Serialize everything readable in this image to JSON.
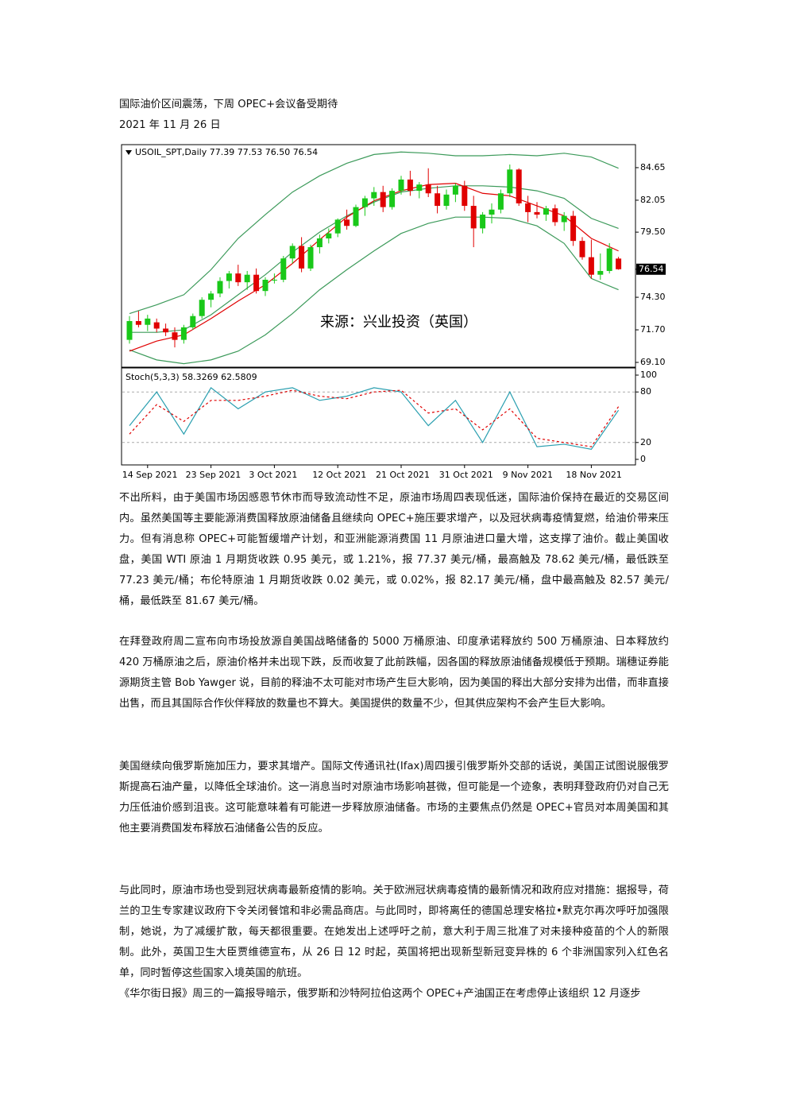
{
  "document": {
    "title": "国际油价区间震荡，下周 OPEC+会议备受期待",
    "date": "2021 年 11 月 26 日",
    "paragraphs": [
      "不出所料，由于美国市场因感恩节休市而导致流动性不足，原油市场周四表现低迷，国际油价保持在最近的交易区间内。虽然美国等主要能源消费国释放原油储备且继续向 OPEC+施压要求增产，以及冠状病毒疫情复燃，给油价带来压力。但有消息称 OPEC+可能暂缓增产计划，和亚洲能源消费国 11 月原油进口量大增，这支撑了油价。截止美国收盘，美国 WTI 原油 1 月期货收跌 0.95 美元，或 1.21%，报 77.37 美元/桶，最高触及 78.62 美元/桶，最低跌至 77.23 美元/桶；布伦特原油 1 月期货收跌 0.02 美元，或 0.02%，报 82.17 美元/桶，盘中最高触及 82.57 美元/桶，最低跌至 81.67 美元/桶。",
      "在拜登政府周二宣布向市场投放源自美国战略储备的 5000 万桶原油、印度承诺释放约 500 万桶原油、日本释放约 420 万桶原油之后，原油价格并未出现下跌，反而收复了此前跌幅，因各国的释放原油储备规模低于预期。瑞穗证券能源期货主管 Bob Yawger 说，目前的释油不太可能对市场产生巨大影响，因为美国的释出大部分安排为出借，而非直接出售，而且其国际合作伙伴释放的数量也不算大。美国提供的数量不少，但其供应架构不会产生巨大影响。",
      "美国继续向俄罗斯施加压力，要求其增产。国际文传通讯社(Ifax)周四援引俄罗斯外交部的话说，美国正试图说服俄罗斯提高石油产量，以降低全球油价。这一消息当时对原油市场影响甚微，但可能是一个迹象，表明拜登政府仍对自己无力压低油价感到沮丧。这可能意味着有可能进一步释放原油储备。市场的主要焦点仍然是 OPEC+官员对本周美国和其他主要消费国发布释放石油储备公告的反应。",
      "与此同时，原油市场也受到冠状病毒最新疫情的影响。关于欧洲冠状病毒疫情的最新情况和政府应对措施：据报导，荷兰的卫生专家建议政府下令关闭餐馆和非必需品商店。与此同时，即将离任的德国总理安格拉•默克尔再次呼吁加强限制，她说，为了减缓扩散，每天都很重要。在她发出上述呼吁之前，意大利于周三批准了对未接种疫苗的个人的新限制。此外，英国卫生大臣贾维德宣布，从 26 日 12 时起，英国将把出现新型新冠变异株的 6 个非洲国家列入红色名单，同时暂停这些国家入境英国的航班。",
      "《华尔街日报》周三的一篇报导暗示，俄罗斯和沙特阿拉伯这两个 OPEC+产油国正在考虑停止该组织 12 月逐步"
    ]
  },
  "chart_data": [
    {
      "type": "candlestick",
      "title": "USOIL_SPT,Daily 77.39 77.53 76.50 76.54",
      "annotation": "来源：兴业投资（英国）",
      "up_color": "#19c819",
      "down_color": "#e00000",
      "categories": [
        null,
        null,
        "14 Sep 2021",
        null,
        null,
        null,
        null,
        null,
        null,
        "23 Sep 2021",
        null,
        null,
        null,
        null,
        null,
        null,
        "3 Oct 2021",
        null,
        null,
        null,
        null,
        null,
        null,
        "12 Oct 2021",
        null,
        null,
        null,
        null,
        null,
        null,
        "21 Oct 2021",
        null,
        null,
        null,
        null,
        null,
        null,
        "31 Oct 2021",
        null,
        null,
        null,
        null,
        null,
        null,
        "9 Nov 2021",
        null,
        null,
        null,
        null,
        null,
        null,
        "18 Nov 2021",
        null,
        null,
        null
      ],
      "candles": [
        [
          70.9,
          72.8,
          70.6,
          72.4
        ],
        [
          72.4,
          73.2,
          71.9,
          72.1
        ],
        [
          72.1,
          72.9,
          71.6,
          72.6
        ],
        [
          72.3,
          72.6,
          71.5,
          71.8
        ],
        [
          71.8,
          72.2,
          71.2,
          71.5
        ],
        [
          71.5,
          71.9,
          70.3,
          70.9
        ],
        [
          70.9,
          72.1,
          70.6,
          71.9
        ],
        [
          71.9,
          73.0,
          71.7,
          72.8
        ],
        [
          72.8,
          74.3,
          72.6,
          74.1
        ],
        [
          74.1,
          74.8,
          73.5,
          74.6
        ],
        [
          74.6,
          75.9,
          74.3,
          75.6
        ],
        [
          75.6,
          76.4,
          75.0,
          76.2
        ],
        [
          76.2,
          76.9,
          75.2,
          75.5
        ],
        [
          75.5,
          76.4,
          74.9,
          76.1
        ],
        [
          76.1,
          76.6,
          74.6,
          74.8
        ],
        [
          74.8,
          75.9,
          74.4,
          75.7
        ],
        [
          75.7,
          76.2,
          75.4,
          75.7
        ],
        [
          75.7,
          77.6,
          75.5,
          77.4
        ],
        [
          77.4,
          78.6,
          77.0,
          78.4
        ],
        [
          78.4,
          79.1,
          76.3,
          76.6
        ],
        [
          76.6,
          78.5,
          76.4,
          78.3
        ],
        [
          78.3,
          79.3,
          77.8,
          79.0
        ],
        [
          79.0,
          79.8,
          78.6,
          79.4
        ],
        [
          79.4,
          80.6,
          79.1,
          80.5
        ],
        [
          80.5,
          81.3,
          79.7,
          80.0
        ],
        [
          80.0,
          81.7,
          79.9,
          81.5
        ],
        [
          81.5,
          82.4,
          80.8,
          82.2
        ],
        [
          82.2,
          83.1,
          81.6,
          82.7
        ],
        [
          82.7,
          83.2,
          81.1,
          81.5
        ],
        [
          81.5,
          83.0,
          81.3,
          82.8
        ],
        [
          82.8,
          84.0,
          82.5,
          83.7
        ],
        [
          83.7,
          84.4,
          82.4,
          82.8
        ],
        [
          82.8,
          83.5,
          82.2,
          83.3
        ],
        [
          83.3,
          84.6,
          82.3,
          82.6
        ],
        [
          82.6,
          83.2,
          81.0,
          81.6
        ],
        [
          81.6,
          82.9,
          81.3,
          82.5
        ],
        [
          82.5,
          83.4,
          81.9,
          83.2
        ],
        [
          83.2,
          83.6,
          81.2,
          81.6
        ],
        [
          81.6,
          82.4,
          78.3,
          79.8
        ],
        [
          79.8,
          81.1,
          79.4,
          80.9
        ],
        [
          80.9,
          81.8,
          80.2,
          81.3
        ],
        [
          81.3,
          82.9,
          81.0,
          82.6
        ],
        [
          82.6,
          84.9,
          82.3,
          84.5
        ],
        [
          84.5,
          84.6,
          81.6,
          81.8
        ],
        [
          81.8,
          82.4,
          80.3,
          81.1
        ],
        [
          81.1,
          81.9,
          80.6,
          80.9
        ],
        [
          80.9,
          81.6,
          80.4,
          81.4
        ],
        [
          81.4,
          81.7,
          80.0,
          80.3
        ],
        [
          80.3,
          81.1,
          79.6,
          80.8
        ],
        [
          80.8,
          81.2,
          78.4,
          78.8
        ],
        [
          78.8,
          79.1,
          77.3,
          77.5
        ],
        [
          77.5,
          78.9,
          75.8,
          76.1
        ],
        [
          76.1,
          77.8,
          75.7,
          76.4
        ],
        [
          76.4,
          78.62,
          76.2,
          78.2
        ],
        [
          77.39,
          77.53,
          76.5,
          76.54
        ]
      ],
      "series": [
        {
          "color": "#3c9a5a",
          "x": [
            0,
            3,
            6,
            9,
            12,
            15,
            18,
            21,
            24,
            27,
            30,
            33,
            36,
            39,
            42,
            45,
            48,
            51,
            54
          ],
          "values": [
            73.0,
            73.7,
            74.5,
            76.5,
            79.0,
            80.9,
            82.7,
            84.0,
            85.0,
            85.7,
            85.9,
            85.8,
            85.6,
            85.6,
            85.7,
            85.6,
            85.8,
            85.5,
            84.6
          ]
        },
        {
          "color": "#3c9a5a",
          "x": [
            0,
            3,
            6,
            9,
            12,
            15,
            18,
            21,
            24,
            27,
            30,
            33,
            36,
            39,
            42,
            45,
            48,
            51,
            54
          ],
          "values": [
            71.5,
            71.5,
            71.7,
            72.9,
            74.5,
            76.1,
            77.9,
            79.5,
            80.8,
            81.9,
            82.7,
            83.0,
            83.2,
            83.2,
            83.1,
            82.8,
            82.2,
            80.6,
            79.8
          ]
        },
        {
          "color": "#3c9a5a",
          "x": [
            0,
            3,
            6,
            9,
            12,
            15,
            18,
            21,
            24,
            27,
            30,
            33,
            36,
            39,
            42,
            45,
            48,
            51,
            54
          ],
          "values": [
            70.1,
            69.3,
            69.0,
            69.3,
            70.0,
            71.3,
            73.0,
            74.9,
            76.5,
            78.0,
            79.4,
            80.2,
            80.7,
            80.7,
            80.6,
            80.0,
            78.6,
            75.8,
            74.9
          ]
        },
        {
          "color": "#e00000",
          "x": [
            0,
            3,
            6,
            9,
            12,
            15,
            18,
            21,
            24,
            27,
            30,
            33,
            36,
            39,
            42,
            45,
            48,
            51,
            54
          ],
          "values": [
            70.0,
            70.8,
            71.3,
            72.6,
            74.0,
            75.3,
            77.0,
            78.9,
            80.7,
            82.0,
            82.8,
            83.3,
            83.4,
            82.6,
            82.4,
            81.6,
            80.8,
            79.0,
            78.0
          ]
        }
      ],
      "ylim": [
        68.72,
        86.36
      ],
      "yticks": [
        {
          "value": 69.1,
          "label": "69.10"
        },
        {
          "value": 71.7,
          "label": "71.70"
        },
        {
          "value": 74.3,
          "label": "74.30"
        },
        76.54,
        {
          "value": 79.5,
          "label": "79.50"
        },
        82.05,
        84.65
      ]
    },
    {
      "type": "line",
      "title": "Stoch(5,3,3) 58.3269 62.5809",
      "series": [
        {
          "color": "#2a9fb0",
          "x": [
            0,
            3,
            6,
            9,
            12,
            15,
            18,
            21,
            24,
            27,
            30,
            33,
            36,
            39,
            42,
            45,
            48,
            51,
            54
          ],
          "values": [
            40,
            80,
            30,
            85,
            60,
            80,
            85,
            70,
            75,
            85,
            80,
            40,
            70,
            20,
            80,
            15,
            18,
            12,
            58.3269
          ]
        },
        {
          "color": "#e00000",
          "dash": true,
          "x": [
            0,
            3,
            6,
            9,
            12,
            15,
            18,
            21,
            24,
            27,
            30,
            33,
            36,
            39,
            42,
            45,
            48,
            51,
            54
          ],
          "values": [
            30,
            65,
            45,
            70,
            70,
            75,
            82,
            75,
            72,
            80,
            82,
            55,
            60,
            35,
            60,
            25,
            20,
            15,
            62.5809
          ]
        }
      ],
      "ylim": [
        -6.6,
        108.5
      ],
      "yticks": [
        0,
        20,
        80,
        100
      ]
    }
  ]
}
